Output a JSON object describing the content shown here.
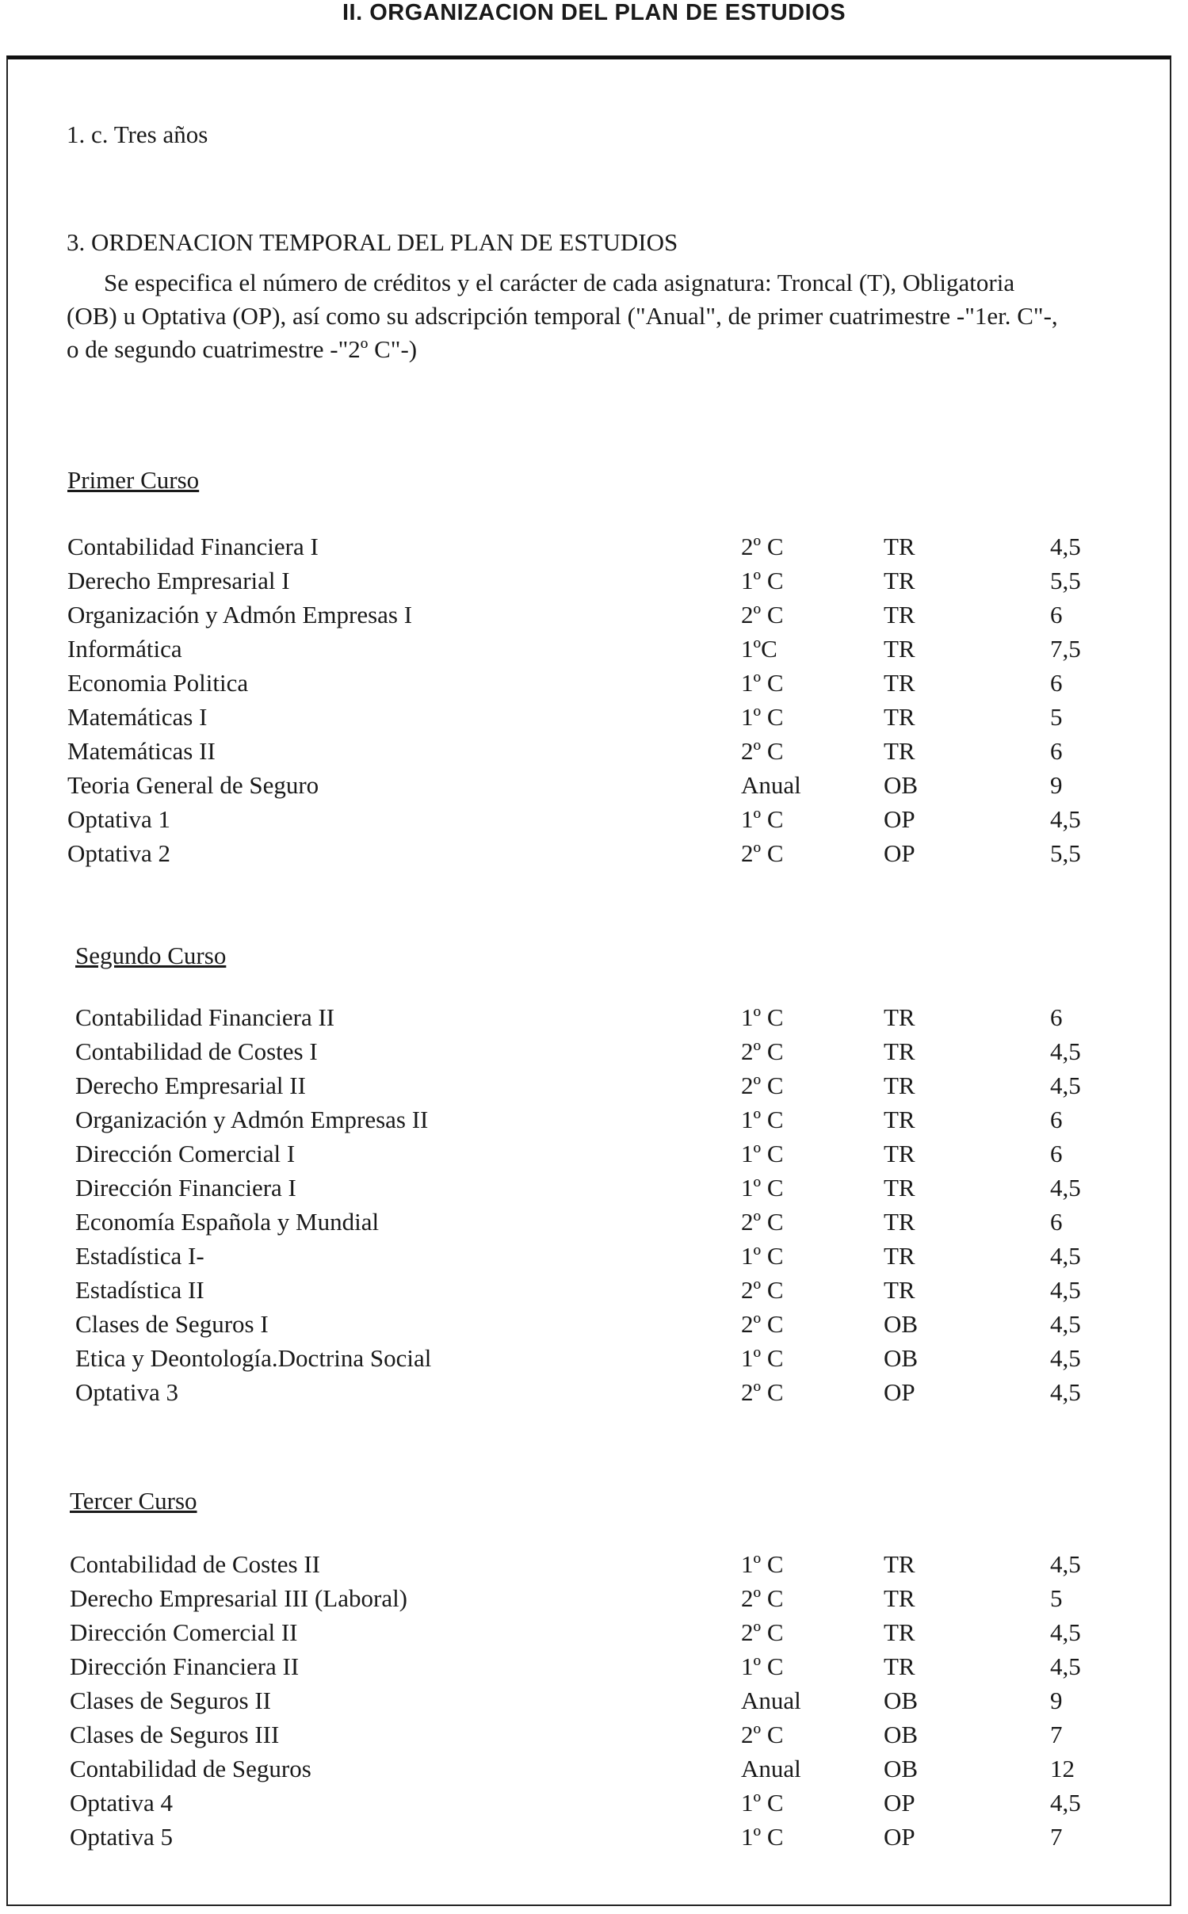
{
  "header": {
    "title": "II. ORGANIZACION DEL PLAN DE ESTUDIOS"
  },
  "duration": "1. c. Tres años",
  "section_title": "3. ORDENACION TEMPORAL DEL PLAN DE ESTUDIOS",
  "intro": "Se especifica el número de créditos y el carácter de cada asignatura: Troncal (T), Obligatoria (OB) u Optativa (OP), así como su adscripción temporal (\"Anual\", de primer cuatrimestre -\"1er. C\"-, o de segundo cuatrimestre -\"2º C\"-)",
  "courses": [
    {
      "title": "Primer Curso",
      "rows": [
        [
          "Contabilidad Financiera I",
          "2º C",
          "TR",
          "4,5"
        ],
        [
          "Derecho Empresarial I",
          "1º C",
          "TR",
          "5,5"
        ],
        [
          "Organización y Admón Empresas I",
          "2º C",
          "TR",
          "6"
        ],
        [
          "Informática",
          "1ºC",
          "TR",
          "7,5"
        ],
        [
          "Economia Politica",
          "1º C",
          "TR",
          "6"
        ],
        [
          "Matemáticas I",
          "1º C",
          "TR",
          "5"
        ],
        [
          "Matemáticas II",
          "2º C",
          "TR",
          "6"
        ],
        [
          "Teoria General de Seguro",
          "Anual",
          "OB",
          "9"
        ],
        [
          "Optativa 1",
          "1º C",
          "OP",
          "4,5"
        ],
        [
          "Optativa 2",
          "2º C",
          "OP",
          "5,5"
        ]
      ]
    },
    {
      "title": "Segundo Curso",
      "rows": [
        [
          "Contabilidad Financiera II",
          "1º C",
          "TR",
          "6"
        ],
        [
          "Contabilidad de Costes I",
          "2º C",
          "TR",
          "4,5"
        ],
        [
          "Derecho Empresarial II",
          "2º C",
          "TR",
          "4,5"
        ],
        [
          "Organización y Admón Empresas II",
          "1º C",
          "TR",
          "6"
        ],
        [
          "Dirección Comercial I",
          "1º C",
          "TR",
          "6"
        ],
        [
          "Dirección Financiera I",
          "1º C",
          "TR",
          "4,5"
        ],
        [
          "Economía Española y Mundial",
          "2º C",
          "TR",
          "6"
        ],
        [
          "Estadística I-",
          "1º C",
          "TR",
          "4,5"
        ],
        [
          "Estadística II",
          "2º C",
          "TR",
          "4,5"
        ],
        [
          "Clases de Seguros I",
          "2º C",
          "OB",
          "4,5"
        ],
        [
          "Etica y Deontología.Doctrina Social",
          "1º C",
          "OB",
          "4,5"
        ],
        [
          "Optativa 3",
          "2º C",
          "OP",
          "4,5"
        ]
      ]
    },
    {
      "title": "Tercer Curso",
      "rows": [
        [
          "Contabilidad de Costes II",
          "1º C",
          "TR",
          "4,5"
        ],
        [
          "Derecho Empresarial III (Laboral)",
          "2º C",
          "TR",
          "5"
        ],
        [
          "Dirección Comercial II",
          "2º C",
          "TR",
          "4,5"
        ],
        [
          "Dirección Financiera II",
          "1º C",
          "TR",
          "4,5"
        ],
        [
          "Clases de Seguros II",
          "Anual",
          "OB",
          "9"
        ],
        [
          "Clases de Seguros III",
          "2º C",
          "OB",
          "7"
        ],
        [
          "Contabilidad de Seguros",
          "Anual",
          "OB",
          "12"
        ],
        [
          "Optativa 4",
          "1º C",
          "OP",
          "4,5"
        ],
        [
          "Optativa 5",
          "1º C",
          "OP",
          "7"
        ]
      ]
    }
  ]
}
